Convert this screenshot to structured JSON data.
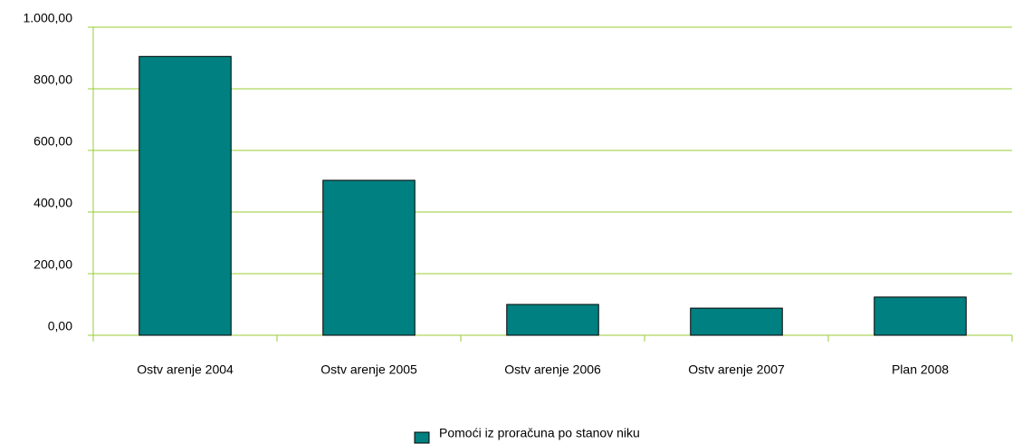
{
  "chart_data": {
    "type": "bar",
    "categories": [
      "Ostv arenje 2004",
      "Ostv arenje 2005",
      "Ostv arenje 2006",
      "Ostv arenje 2007",
      "Plan 2008"
    ],
    "series": [
      {
        "name": "Pomoći iz proračuna po stanov niku",
        "color": "#008080",
        "values": [
          905,
          503,
          100,
          88,
          124
        ]
      }
    ],
    "ylim": [
      0,
      1000
    ],
    "yticks": [
      {
        "value": 0,
        "label": "0,00"
      },
      {
        "value": 200,
        "label": "200,00"
      },
      {
        "value": 400,
        "label": "400,00"
      },
      {
        "value": 600,
        "label": "600,00"
      },
      {
        "value": 800,
        "label": "800,00"
      },
      {
        "value": 1000,
        "label": "1.000,00"
      }
    ],
    "grid": true,
    "legend": "bottom"
  }
}
